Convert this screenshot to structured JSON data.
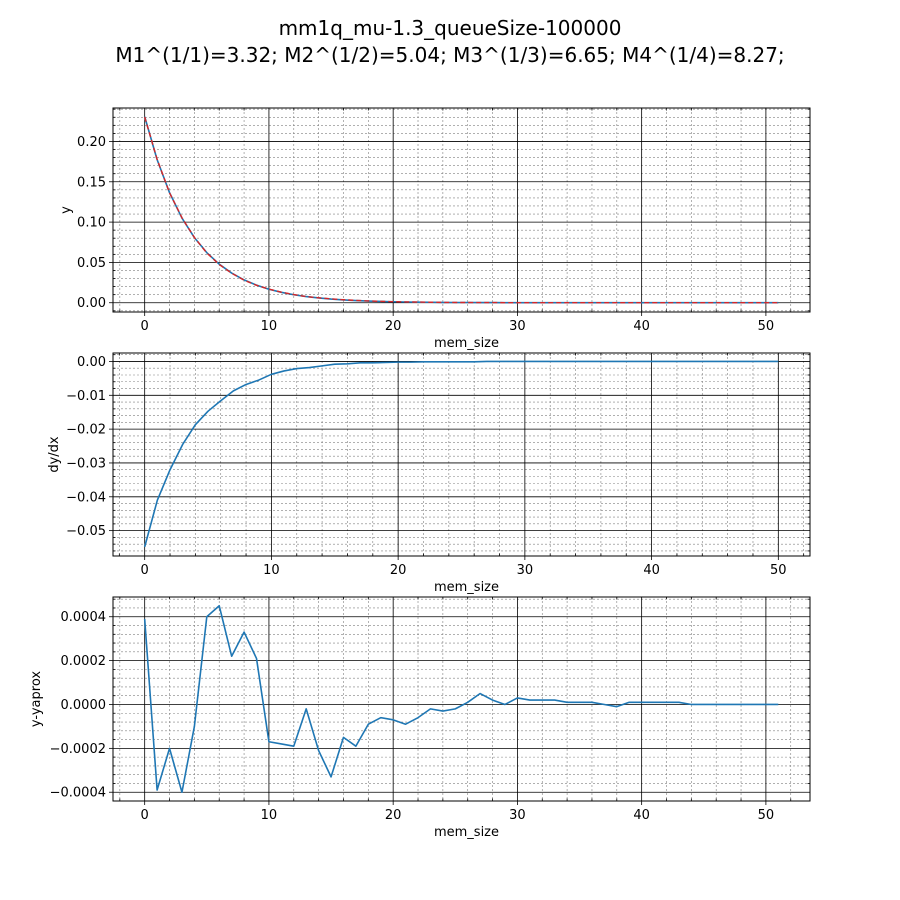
{
  "figure": {
    "title_line1": "mm1q_mu-1.3_queueSize-100000",
    "title_line2": "M1^(1/1)=3.32; M2^(1/2)=5.04; M3^(1/3)=6.65; M4^(1/4)=8.27;"
  },
  "colors": {
    "series": "#1f77b4",
    "approx": "#d62728",
    "grid_major": "#000000",
    "grid_minor": "#808080"
  },
  "chart_data": [
    {
      "type": "line",
      "xlabel": "mem_size",
      "ylabel": "y",
      "xlim": [
        -2.55,
        53.55
      ],
      "ylim": [
        -0.0115,
        0.2415
      ],
      "xticks": [
        0,
        10,
        20,
        30,
        40,
        50
      ],
      "xtick_labels": [
        "0",
        "10",
        "20",
        "30",
        "40",
        "50"
      ],
      "yticks": [
        0.0,
        0.05,
        0.1,
        0.15,
        0.2
      ],
      "ytick_labels": [
        "0.00",
        "0.05",
        "0.10",
        "0.15",
        "0.20"
      ],
      "grid": true,
      "series": [
        {
          "style": "solid",
          "color": "#1f77b4",
          "x": [
            0,
            1,
            2,
            3,
            4,
            5,
            6,
            7,
            8,
            9,
            10,
            11,
            12,
            13,
            14,
            15,
            16,
            17,
            18,
            19,
            20,
            21,
            22,
            23,
            24,
            25,
            26,
            27,
            28,
            29,
            30,
            31,
            32,
            33,
            34,
            35,
            36,
            37,
            38,
            39,
            40,
            41,
            42,
            43,
            44,
            45,
            46,
            47,
            48,
            49,
            50,
            51
          ],
          "y": [
            0.2308,
            0.1775,
            0.1365,
            0.105,
            0.0808,
            0.0621,
            0.0478,
            0.0368,
            0.0283,
            0.0218,
            0.0167,
            0.0129,
            0.0099,
            0.0076,
            0.0059,
            0.0045,
            0.0035,
            0.0027,
            0.0021,
            0.0016,
            0.0012,
            0.0009,
            0.0007,
            0.0006,
            0.0004,
            0.0003,
            0.0003,
            0.0002,
            0.0002,
            0.0001,
            0.0001,
            0.0001,
            0.0001,
            0.0,
            0.0,
            0.0,
            0.0,
            0.0,
            0.0,
            0.0,
            0.0,
            0.0,
            0.0,
            0.0,
            0.0,
            0.0,
            0.0,
            0.0,
            0.0,
            0.0,
            0.0,
            0.0
          ]
        },
        {
          "style": "dashed",
          "color": "#d62728",
          "x": [
            0,
            1,
            2,
            3,
            4,
            5,
            6,
            7,
            8,
            9,
            10,
            11,
            12,
            13,
            14,
            15,
            16,
            17,
            18,
            19,
            20,
            21,
            22,
            23,
            24,
            25,
            26,
            27,
            28,
            29,
            30,
            31,
            32,
            33,
            34,
            35,
            36,
            37,
            38,
            39,
            40,
            41,
            42,
            43,
            44,
            45,
            46,
            47,
            48,
            49,
            50,
            51
          ],
          "y": [
            0.2304,
            0.1779,
            0.1363,
            0.1054,
            0.0809,
            0.0617,
            0.0474,
            0.0366,
            0.028,
            0.0216,
            0.0169,
            0.0131,
            0.0101,
            0.0076,
            0.0061,
            0.0048,
            0.0037,
            0.0029,
            0.0022,
            0.0017,
            0.0013,
            0.001,
            0.0008,
            0.0006,
            0.0004,
            0.0003,
            0.0003,
            0.0002,
            0.0002,
            0.0001,
            0.0001,
            0.0001,
            0.0001,
            0.0,
            0.0,
            0.0,
            0.0,
            0.0,
            0.0,
            0.0,
            0.0,
            0.0,
            0.0,
            0.0,
            0.0,
            0.0,
            0.0,
            0.0,
            0.0,
            0.0,
            0.0,
            0.0
          ]
        }
      ]
    },
    {
      "type": "line",
      "xlabel": "mem_size",
      "ylabel": "dy/dx",
      "xlim": [
        -2.5,
        52.5
      ],
      "ylim": [
        -0.0575,
        0.0025
      ],
      "xticks": [
        0,
        10,
        20,
        30,
        40,
        50
      ],
      "xtick_labels": [
        "0",
        "10",
        "20",
        "30",
        "40",
        "50"
      ],
      "yticks": [
        -0.05,
        -0.04,
        -0.03,
        -0.02,
        -0.01,
        0.0
      ],
      "ytick_labels": [
        "−0.05",
        "−0.04",
        "−0.03",
        "−0.02",
        "−0.01",
        "0.00"
      ],
      "grid": true,
      "series": [
        {
          "style": "solid",
          "color": "#1f77b4",
          "x": [
            0,
            1,
            2,
            3,
            4,
            5,
            6,
            7,
            8,
            9,
            10,
            11,
            12,
            13,
            14,
            15,
            16,
            17,
            18,
            19,
            20,
            21,
            22,
            23,
            24,
            25,
            26,
            27,
            28,
            29,
            30,
            31,
            32,
            33,
            34,
            35,
            36,
            37,
            38,
            39,
            40,
            41,
            42,
            43,
            44,
            45,
            46,
            47,
            48,
            49,
            50
          ],
          "y": [
            -0.0548,
            -0.041,
            -0.032,
            -0.0245,
            -0.0187,
            -0.0147,
            -0.0116,
            -0.0087,
            -0.0068,
            -0.0055,
            -0.0038,
            -0.0028,
            -0.0021,
            -0.0018,
            -0.0013,
            -0.0008,
            -0.0007,
            -0.0004,
            -0.0004,
            -0.0003,
            -0.0002,
            -0.0002,
            -0.0001,
            -0.0001,
            -0.0001,
            -0.0001,
            -0.0001,
            0.0,
            0.0,
            0.0,
            0.0,
            0.0,
            0.0,
            0.0,
            0.0,
            0.0,
            0.0,
            0.0,
            0.0,
            0.0,
            0.0,
            0.0,
            0.0,
            0.0,
            0.0,
            0.0,
            0.0,
            0.0,
            0.0,
            0.0,
            0.0
          ]
        }
      ]
    },
    {
      "type": "line",
      "xlabel": "mem_size",
      "ylabel": "y-yaprox",
      "xlim": [
        -2.55,
        53.55
      ],
      "ylim": [
        -0.00044,
        0.00049
      ],
      "xticks": [
        0,
        10,
        20,
        30,
        40,
        50
      ],
      "xtick_labels": [
        "0",
        "10",
        "20",
        "30",
        "40",
        "50"
      ],
      "yticks": [
        -0.0004,
        -0.0002,
        0.0,
        0.0002,
        0.0004
      ],
      "ytick_labels": [
        "−0.0004",
        "−0.0002",
        "0.0000",
        "0.0002",
        "0.0004"
      ],
      "grid": true,
      "series": [
        {
          "style": "solid",
          "color": "#1f77b4",
          "x": [
            0,
            1,
            2,
            3,
            4,
            5,
            6,
            7,
            8,
            9,
            10,
            11,
            12,
            13,
            14,
            15,
            16,
            17,
            18,
            19,
            20,
            21,
            22,
            23,
            24,
            25,
            26,
            27,
            28,
            29,
            30,
            31,
            32,
            33,
            34,
            35,
            36,
            37,
            38,
            39,
            40,
            41,
            42,
            43,
            44,
            45,
            46,
            47,
            48,
            49,
            50,
            51
          ],
          "y": [
            0.00039,
            -0.00039,
            -0.0002,
            -0.0004,
            -0.0001,
            0.0004,
            0.00045,
            0.00022,
            0.00033,
            0.00021,
            -0.00017,
            -0.00018,
            -0.00019,
            -2e-05,
            -0.00021,
            -0.00033,
            -0.00015,
            -0.00019,
            -9e-05,
            -6e-05,
            -7e-05,
            -9e-05,
            -6e-05,
            -2e-05,
            -3e-05,
            -2e-05,
            1e-05,
            5e-05,
            2e-05,
            0.0,
            3e-05,
            2e-05,
            2e-05,
            2e-05,
            1e-05,
            1e-05,
            1e-05,
            0.0,
            -1e-05,
            1e-05,
            1e-05,
            1e-05,
            1e-05,
            1e-05,
            0.0,
            0.0,
            0.0,
            0.0,
            0.0,
            0.0,
            0.0,
            0.0
          ]
        }
      ]
    }
  ]
}
